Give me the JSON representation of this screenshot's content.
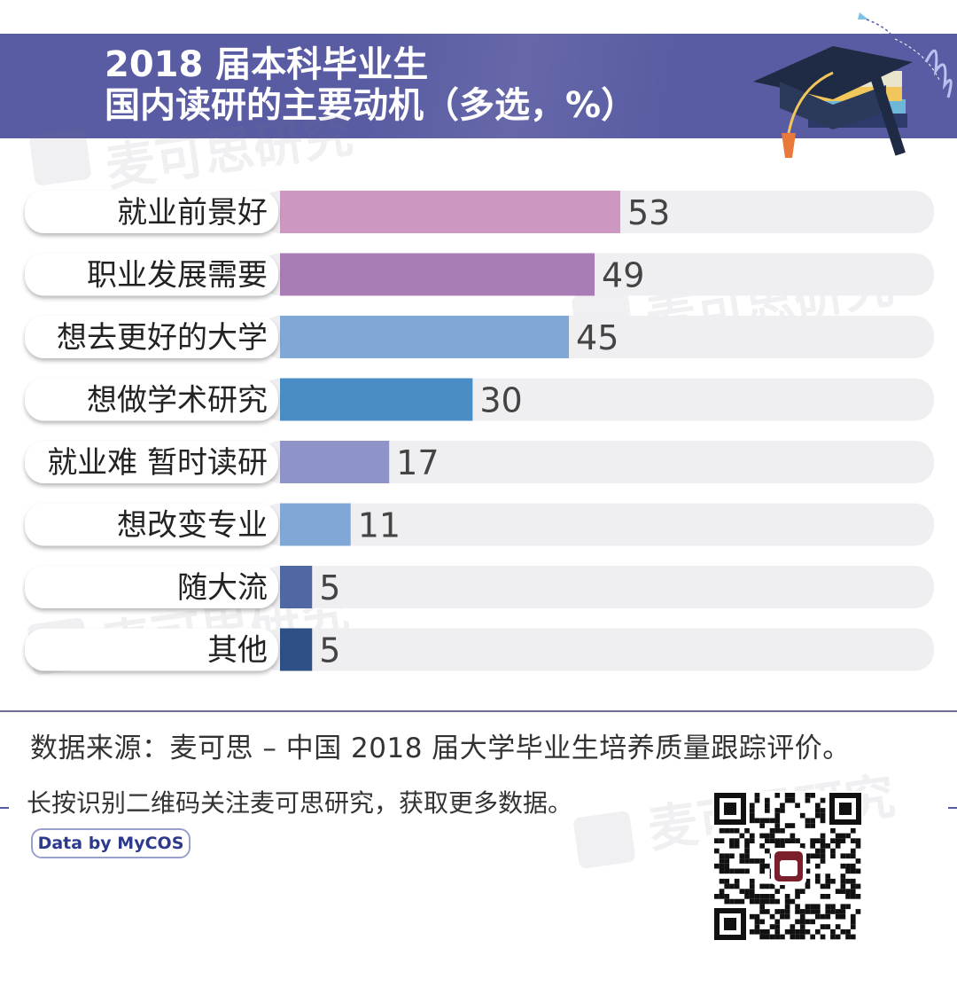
{
  "header": {
    "title_line1": "2018 届本科毕业生",
    "title_line2": "国内读研的主要动机（多选，%）"
  },
  "watermark": "麦可思研究",
  "chart_data": {
    "type": "bar",
    "orientation": "horizontal",
    "categories": [
      "就业前景好",
      "职业发展需要",
      "想去更好的大学",
      "想做学术研究",
      "就业难 暂时读研",
      "想改变专业",
      "随大流",
      "其他"
    ],
    "values": [
      53,
      49,
      45,
      30,
      17,
      11,
      5,
      5
    ],
    "xlim": [
      0,
      100
    ],
    "colors": [
      "#cc97c0",
      "#a87db5",
      "#7fa8d6",
      "#4a8cc4",
      "#8f94c8",
      "#7fa8d6",
      "#4f67a3",
      "#2d4f86"
    ],
    "track_color": "#efeef0",
    "grid": false,
    "legend": "none"
  },
  "footer": {
    "source": "数据来源：麦可思 – 中国 2018 届大学毕业生培养质量跟踪评价。",
    "qr_note": "长按识别二维码关注麦可思研究，获取更多数据。",
    "badge": "Data by MyCOS"
  },
  "icons": {
    "header_art": "graduation-cap-books-icon",
    "qr": "qr-code-icon"
  }
}
